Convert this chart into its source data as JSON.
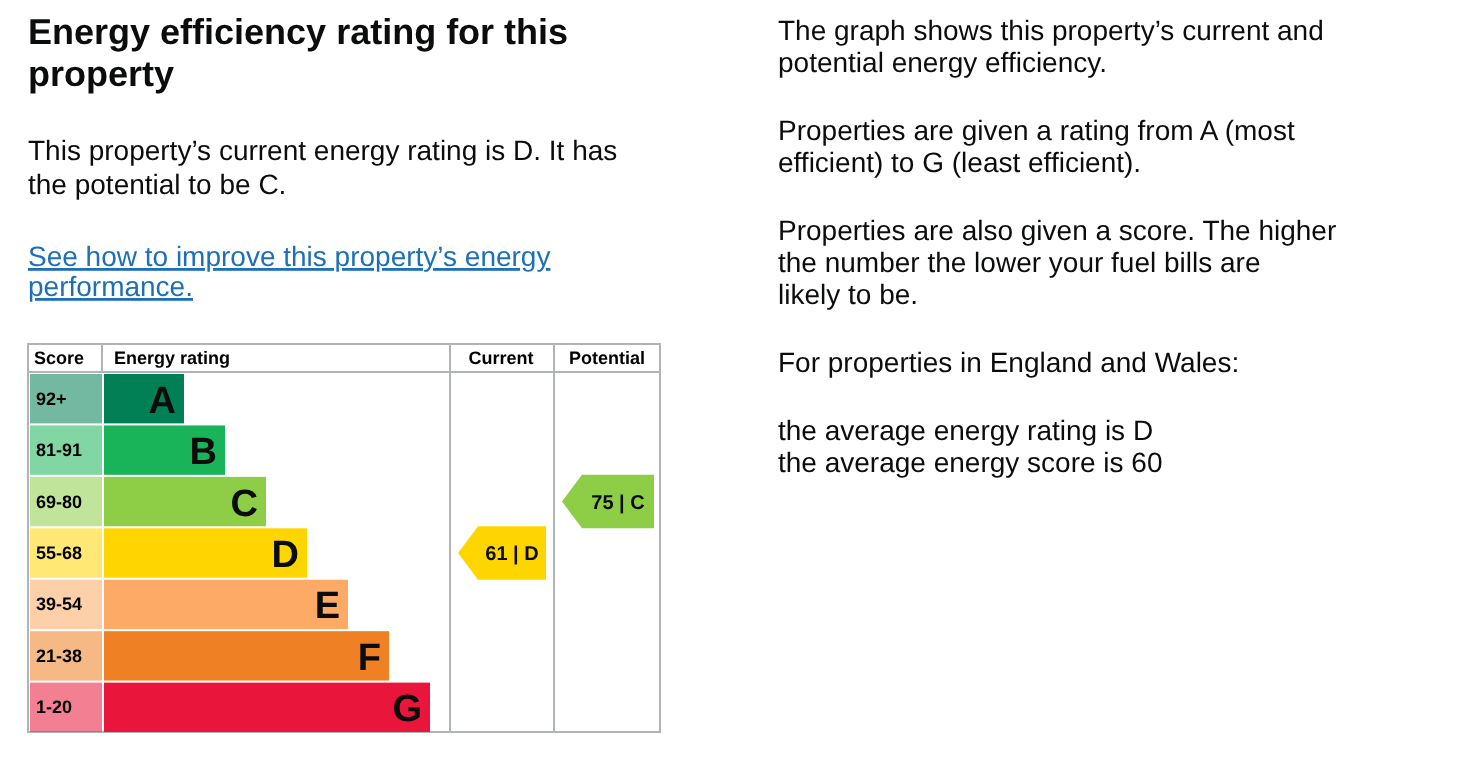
{
  "chart_data": {
    "type": "other",
    "title": "Energy efficiency rating for this property",
    "subtitle": "This property’s current energy rating is D. It has the potential to be C.",
    "ylabel": "Score",
    "xlabel": "Energy rating",
    "categories": [
      "92+",
      "81-91",
      "69-80",
      "55-68",
      "39-54",
      "21-38",
      "1-20"
    ],
    "value_labels": [
      "A",
      "B",
      "C",
      "D",
      "E",
      "F",
      "G"
    ],
    "colors": [
      "#008054",
      "#19b459",
      "#8dce46",
      "#ffd500",
      "#fcaa65",
      "#ef8023",
      "#e9153b"
    ],
    "series": [
      {
        "values": [
          null,
          null,
          null,
          61,
          null,
          null,
          null
        ],
        "value_labels": [
          null,
          null,
          null,
          "61 | D",
          null,
          null,
          null
        ]
      },
      {
        "values": [
          null,
          null,
          75,
          null,
          null,
          null,
          null
        ],
        "value_labels": [
          null,
          null,
          "75 | C",
          null,
          null,
          null,
          null
        ]
      }
    ],
    "annotations": [
      "See how to improve this property’s energy performance.",
      "Current",
      "Potential",
      "The graph shows this property’s current and potential energy efficiency.",
      "Properties are given a rating from A (most efficient) to G (least efficient).",
      "Properties are also given a score. The higher the number the lower your fuel bills are likely to be.",
      "For properties in England and Wales:",
      "the average energy rating is D",
      "the average energy score is 60"
    ]
  }
}
